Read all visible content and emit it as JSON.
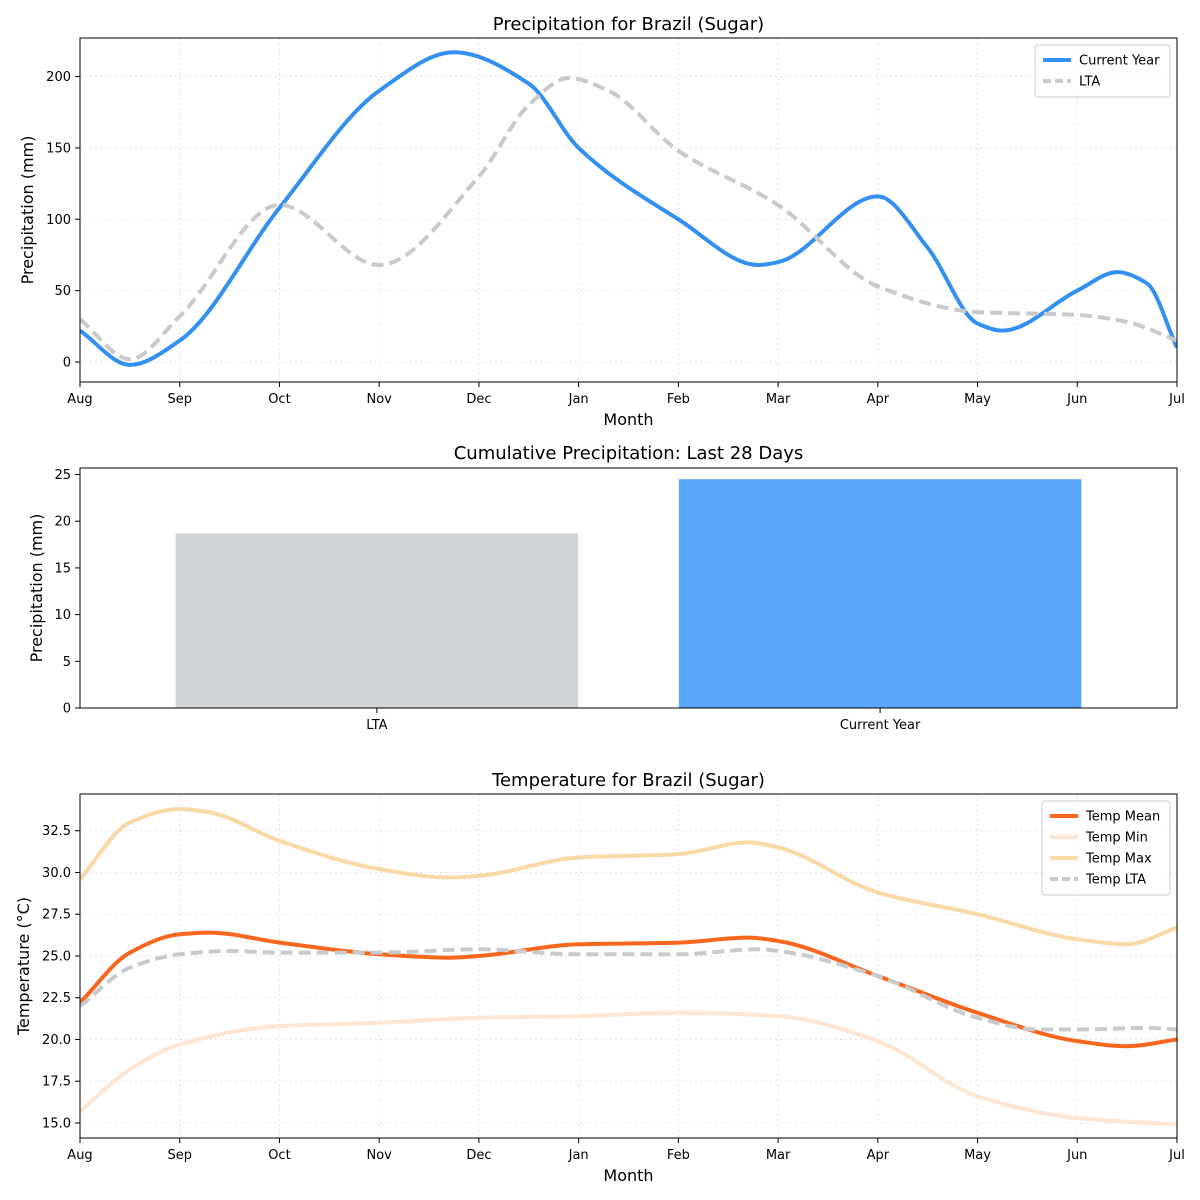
{
  "chart_data": [
    {
      "type": "line",
      "title": "Precipitation for Brazil (Sugar)",
      "xlabel": "Month",
      "ylabel": "Precipitation (mm)",
      "categories": [
        "Aug",
        "Sep",
        "Oct",
        "Nov",
        "Dec",
        "Jan",
        "Feb",
        "Mar",
        "Apr",
        "May",
        "Jun",
        "Jul"
      ],
      "ylim": [
        -14,
        227
      ],
      "yticks": [
        0,
        50,
        100,
        150,
        200
      ],
      "grid": true,
      "legend_position": "top-right",
      "series": [
        {
          "name": "Current Year",
          "color": "#3390f0",
          "style": "solid",
          "values": [
            [
              0,
              22
            ],
            [
              0.5,
              -2
            ],
            [
              1,
              15
            ],
            [
              2,
              108
            ],
            [
              3,
              190
            ],
            [
              3.75,
              217
            ],
            [
              4.5,
              195
            ],
            [
              5,
              150
            ],
            [
              6,
              100
            ],
            [
              6.8,
              68
            ],
            [
              7,
              70
            ],
            [
              8,
              116
            ],
            [
              8.5,
              80
            ],
            [
              9,
              27
            ],
            [
              9.25,
              22
            ],
            [
              10,
              50
            ],
            [
              10.4,
              63
            ],
            [
              10.7,
              55
            ],
            [
              11,
              10
            ]
          ]
        },
        {
          "name": "LTA",
          "color": "#c8cacc",
          "style": "dashed",
          "values": [
            [
              0,
              30
            ],
            [
              0.5,
              2
            ],
            [
              1,
              32
            ],
            [
              2,
              110
            ],
            [
              3,
              68
            ],
            [
              4,
              130
            ],
            [
              4.5,
              180
            ],
            [
              4.9,
              199
            ],
            [
              5.3,
              190
            ],
            [
              6,
              148
            ],
            [
              7,
              110
            ],
            [
              8,
              53
            ],
            [
              9,
              35
            ],
            [
              10,
              33
            ],
            [
              10.5,
              28
            ],
            [
              11,
              15
            ]
          ]
        }
      ]
    },
    {
      "type": "bar",
      "title": "Cumulative Precipitation: Last 28 Days",
      "xlabel": "",
      "ylabel": "Precipitation (mm)",
      "categories": [
        "LTA",
        "Current Year"
      ],
      "values": [
        18.7,
        24.5
      ],
      "colors": [
        "#d1d4d7",
        "#59a6fa"
      ],
      "ylim": [
        0,
        25.7
      ],
      "yticks": [
        0,
        5,
        10,
        15,
        20,
        25
      ],
      "grid": false
    },
    {
      "type": "line",
      "title": "Temperature for Brazil (Sugar)",
      "xlabel": "Month",
      "ylabel": "Temperature (°C)",
      "categories": [
        "Aug",
        "Sep",
        "Oct",
        "Nov",
        "Dec",
        "Jan",
        "Feb",
        "Mar",
        "Apr",
        "May",
        "Jun",
        "Jul"
      ],
      "ylim": [
        14.1,
        34.7
      ],
      "yticks": [
        15.0,
        17.5,
        20.0,
        22.5,
        25.0,
        27.5,
        30.0,
        32.5
      ],
      "grid": true,
      "legend_position": "top-right",
      "series": [
        {
          "name": "Temp Mean",
          "color": "#f7661e",
          "style": "solid",
          "values": [
            [
              0,
              22.2
            ],
            [
              0.5,
              25.2
            ],
            [
              1,
              26.3
            ],
            [
              1.3,
              26.4
            ],
            [
              2,
              25.8
            ],
            [
              3,
              25.1
            ],
            [
              3.7,
              24.9
            ],
            [
              4,
              25
            ],
            [
              5,
              25.7
            ],
            [
              6,
              25.8
            ],
            [
              6.7,
              26.1
            ],
            [
              7,
              25.9
            ],
            [
              8,
              23.8
            ],
            [
              9,
              21.6
            ],
            [
              10,
              19.9
            ],
            [
              10.5,
              19.6
            ],
            [
              11,
              20
            ]
          ]
        },
        {
          "name": "Temp Min",
          "color": "#fde6d3",
          "style": "solid",
          "values": [
            [
              0,
              15.7
            ],
            [
              0.5,
              18.2
            ],
            [
              1,
              19.7
            ],
            [
              2,
              20.8
            ],
            [
              3,
              21
            ],
            [
              4,
              21.3
            ],
            [
              5,
              21.4
            ],
            [
              6,
              21.6
            ],
            [
              7,
              21.4
            ],
            [
              8,
              19.9
            ],
            [
              9,
              16.6
            ],
            [
              10,
              15.3
            ],
            [
              11,
              14.9
            ]
          ]
        },
        {
          "name": "Temp Max",
          "color": "#f9d9a6",
          "style": "solid",
          "values": [
            [
              0,
              29.6
            ],
            [
              0.5,
              33
            ],
            [
              1,
              33.8
            ],
            [
              1.3,
              33.6
            ],
            [
              2,
              31.9
            ],
            [
              3,
              30.2
            ],
            [
              3.7,
              29.7
            ],
            [
              4,
              29.8
            ],
            [
              5,
              30.9
            ],
            [
              6,
              31.1
            ],
            [
              6.7,
              31.8
            ],
            [
              7,
              31.5
            ],
            [
              8,
              28.8
            ],
            [
              9,
              27.5
            ],
            [
              10,
              26
            ],
            [
              10.5,
              25.7
            ],
            [
              11,
              26.7
            ]
          ]
        },
        {
          "name": "Temp LTA",
          "color": "#c8cacc",
          "style": "dashed",
          "values": [
            [
              0,
              22
            ],
            [
              0.5,
              24.3
            ],
            [
              1,
              25.1
            ],
            [
              1.5,
              25.3
            ],
            [
              2,
              25.2
            ],
            [
              3,
              25.2
            ],
            [
              4,
              25.4
            ],
            [
              5,
              25.1
            ],
            [
              6,
              25.1
            ],
            [
              6.8,
              25.4
            ],
            [
              7,
              25.3
            ],
            [
              8,
              23.8
            ],
            [
              9,
              21.3
            ],
            [
              9.6,
              20.6
            ],
            [
              10,
              20.6
            ],
            [
              10.7,
              20.7
            ],
            [
              11,
              20.6
            ]
          ]
        }
      ]
    }
  ]
}
